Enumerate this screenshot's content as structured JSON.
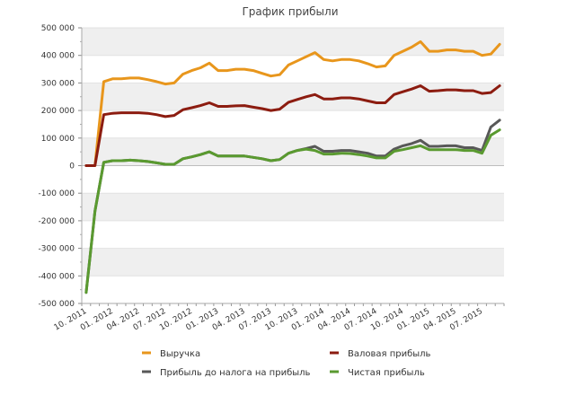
{
  "chart_data": {
    "type": "line",
    "title": "График прибыли",
    "xlabel": "",
    "ylabel": "",
    "ylim": [
      -500000,
      500000
    ],
    "y_ticks": [
      500000,
      400000,
      300000,
      200000,
      100000,
      0,
      -100000,
      -200000,
      -300000,
      -400000,
      -500000
    ],
    "y_tick_labels": [
      "500 000",
      "400 000",
      "300 000",
      "200 000",
      "100 000",
      "0",
      "-100 000",
      "-200 000",
      "-300 000",
      "-400 000",
      "-500 000"
    ],
    "x_tick_labels": [
      "10. 2011",
      "01. 2012",
      "04. 2012",
      "07. 2012",
      "10. 2012",
      "01. 2013",
      "04. 2013",
      "07. 2013",
      "10. 2013",
      "01. 2014",
      "04. 2014",
      "07. 2014",
      "10. 2014",
      "01. 2015",
      "04. 2015",
      "07. 2015"
    ],
    "x_count": 48,
    "grid": "horizontal alternating bands",
    "legend_position": "bottom",
    "series": [
      {
        "name": "Выручка",
        "color": "#e8961c",
        "values": [
          0,
          0,
          305000,
          315000,
          315000,
          318000,
          318000,
          312000,
          305000,
          296000,
          300000,
          332000,
          345000,
          355000,
          372000,
          345000,
          345000,
          350000,
          350000,
          345000,
          335000,
          325000,
          330000,
          365000,
          380000,
          395000,
          410000,
          385000,
          380000,
          385000,
          385000,
          380000,
          370000,
          358000,
          362000,
          400000,
          415000,
          430000,
          450000,
          415000,
          415000,
          420000,
          420000,
          415000,
          415000,
          400000,
          405000,
          440000
        ]
      },
      {
        "name": "Валовая прибыль",
        "color": "#8c1c10",
        "values": [
          0,
          0,
          185000,
          190000,
          192000,
          192000,
          192000,
          190000,
          185000,
          178000,
          182000,
          203000,
          210000,
          218000,
          228000,
          215000,
          215000,
          217000,
          218000,
          212000,
          207000,
          200000,
          205000,
          230000,
          240000,
          250000,
          258000,
          242000,
          242000,
          246000,
          246000,
          242000,
          235000,
          228000,
          228000,
          258000,
          268000,
          278000,
          290000,
          270000,
          272000,
          275000,
          275000,
          272000,
          272000,
          262000,
          265000,
          290000
        ]
      },
      {
        "name": "Прибыль до налога на прибыль",
        "color": "#585858",
        "values": [
          -460000,
          -165000,
          12000,
          18000,
          18000,
          20000,
          18000,
          15000,
          10000,
          5000,
          5000,
          25000,
          32000,
          40000,
          50000,
          35000,
          35000,
          35000,
          35000,
          30000,
          25000,
          18000,
          22000,
          45000,
          55000,
          62000,
          70000,
          52000,
          52000,
          55000,
          55000,
          50000,
          45000,
          35000,
          35000,
          60000,
          72000,
          80000,
          92000,
          70000,
          70000,
          72000,
          72000,
          65000,
          65000,
          55000,
          140000,
          165000
        ]
      },
      {
        "name": "Чистая прибыль",
        "color": "#5a9a30",
        "values": [
          -460000,
          -165000,
          12000,
          18000,
          18000,
          20000,
          18000,
          15000,
          10000,
          5000,
          5000,
          25000,
          32000,
          40000,
          50000,
          35000,
          35000,
          35000,
          35000,
          30000,
          25000,
          18000,
          22000,
          45000,
          55000,
          60000,
          55000,
          42000,
          42000,
          45000,
          44000,
          40000,
          35000,
          28000,
          28000,
          52000,
          58000,
          65000,
          72000,
          58000,
          58000,
          58000,
          58000,
          55000,
          55000,
          45000,
          110000,
          130000
        ]
      }
    ]
  }
}
